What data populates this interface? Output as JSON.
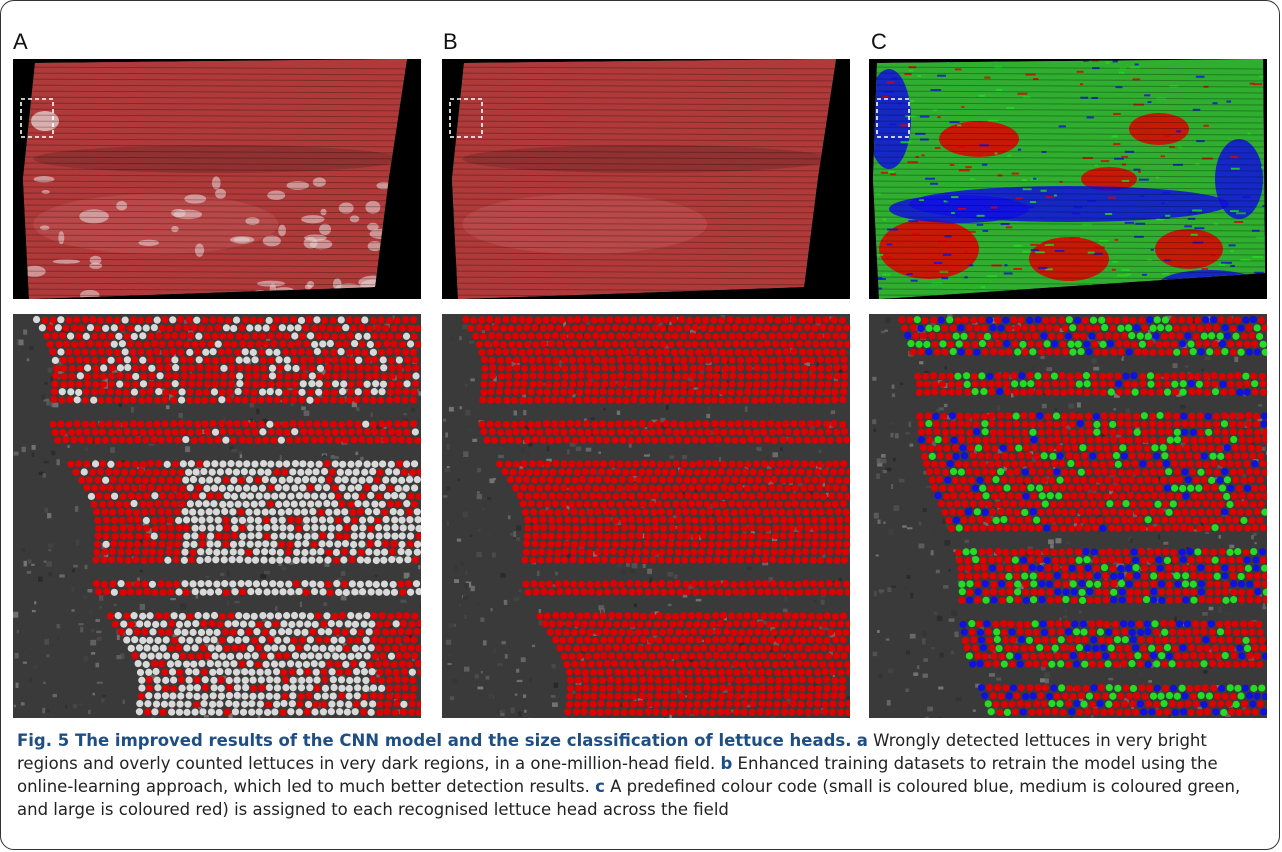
{
  "panel_labels": [
    "A",
    "B",
    "C"
  ],
  "panels": {
    "a_top": {
      "name": "field-overview-a"
    },
    "b_top": {
      "name": "field-overview-b"
    },
    "c_top": {
      "name": "field-overview-c"
    },
    "a_bottom": {
      "name": "zoom-detail-a"
    },
    "b_bottom": {
      "name": "zoom-detail-b"
    },
    "c_bottom": {
      "name": "zoom-detail-c"
    }
  },
  "colors": {
    "large": "#e00000",
    "medium": "#22dd22",
    "small": "#1010e0",
    "miss": "#d9d9d9",
    "caption_bold": "#1f4e85"
  },
  "caption": {
    "title": "Fig. 5 The improved results of the CNN model and the size classification of lettuce heads.",
    "a_key": "a",
    "a_text": " Wrongly detected lettuces in very bright regions and overly counted lettuces in very dark regions, in a one-million-head field. ",
    "b_key": "b",
    "b_text": " Enhanced training datasets to retrain the model using the online-learning approach, which led to much better detection results. ",
    "c_key": "c",
    "c_text": " A predefined colour code (small is coloured blue, medium is coloured green, and large is coloured red) is assigned to each recognised lettuce head across the field"
  }
}
